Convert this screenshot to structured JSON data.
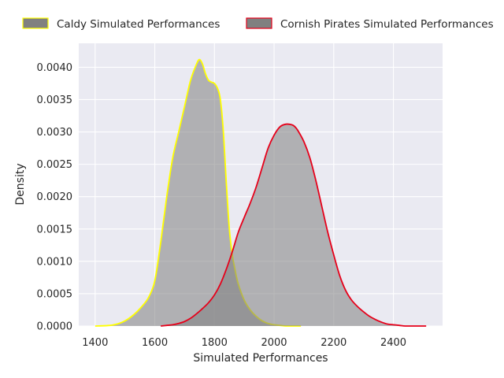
{
  "chart_data": {
    "type": "area",
    "xlabel": "Simulated Performances",
    "ylabel": "Density",
    "xlim": [
      1345,
      2565
    ],
    "ylim": [
      0,
      0.00437
    ],
    "xticks": [
      1400,
      1600,
      1800,
      2000,
      2200,
      2400
    ],
    "xtick_labels": [
      "1400",
      "1600",
      "1800",
      "2000",
      "2200",
      "2400"
    ],
    "yticks": [
      0,
      0.0005,
      0.001,
      0.0015,
      0.002,
      0.0025,
      0.003,
      0.0035,
      0.004
    ],
    "ytick_labels": [
      "0.0000",
      "0.0005",
      "0.0010",
      "0.0015",
      "0.0020",
      "0.0025",
      "0.0030",
      "0.0035",
      "0.0040"
    ],
    "grid": true,
    "background": "#eaeaf2",
    "fill_color": "#808080",
    "legend_position": "top",
    "series": [
      {
        "name": "Caldy Simulated Performances",
        "edge_color": "#ffff00",
        "x": [
          1400,
          1450,
          1480,
          1500,
          1520,
          1540,
          1560,
          1580,
          1600,
          1620,
          1640,
          1660,
          1680,
          1700,
          1720,
          1740,
          1750,
          1760,
          1770,
          1780,
          1790,
          1800,
          1810,
          1820,
          1830,
          1840,
          1850,
          1860,
          1870,
          1880,
          1900,
          1920,
          1940,
          1960,
          1980,
          2000,
          2020,
          2040,
          2060,
          2090
        ],
        "y": [
          0,
          1e-05,
          4e-05,
          8e-05,
          0.00014,
          0.00022,
          0.00032,
          0.00045,
          0.0007,
          0.0013,
          0.002,
          0.0026,
          0.003,
          0.0034,
          0.0038,
          0.00405,
          0.00412,
          0.00405,
          0.0039,
          0.0038,
          0.00377,
          0.00375,
          0.00368,
          0.0035,
          0.003,
          0.0022,
          0.0015,
          0.0011,
          0.00085,
          0.00065,
          0.0004,
          0.00025,
          0.00015,
          8e-05,
          4e-05,
          2e-05,
          1e-05,
          0,
          0,
          0
        ]
      },
      {
        "name": "Cornish Pirates Simulated Performances",
        "edge_color": "#e6001a",
        "x": [
          1620,
          1640,
          1660,
          1680,
          1700,
          1720,
          1740,
          1760,
          1780,
          1800,
          1820,
          1840,
          1860,
          1880,
          1900,
          1920,
          1940,
          1960,
          1980,
          2000,
          2020,
          2040,
          2060,
          2070,
          2080,
          2100,
          2120,
          2140,
          2160,
          2180,
          2200,
          2220,
          2240,
          2260,
          2280,
          2300,
          2320,
          2340,
          2360,
          2380,
          2400,
          2420,
          2440,
          2460,
          2480,
          2500,
          2510
        ],
        "y": [
          0,
          1e-05,
          2e-05,
          4e-05,
          7e-05,
          0.00012,
          0.00019,
          0.00027,
          0.00036,
          0.00048,
          0.00065,
          0.00088,
          0.00115,
          0.00145,
          0.00168,
          0.0019,
          0.00215,
          0.00245,
          0.00275,
          0.00295,
          0.00308,
          0.00312,
          0.00311,
          0.00308,
          0.00302,
          0.00285,
          0.0026,
          0.00225,
          0.00185,
          0.00145,
          0.0011,
          0.00078,
          0.00055,
          0.0004,
          0.0003,
          0.00022,
          0.00015,
          0.0001,
          6e-05,
          3e-05,
          2e-05,
          1e-05,
          0,
          0,
          0,
          0,
          0
        ]
      }
    ]
  }
}
